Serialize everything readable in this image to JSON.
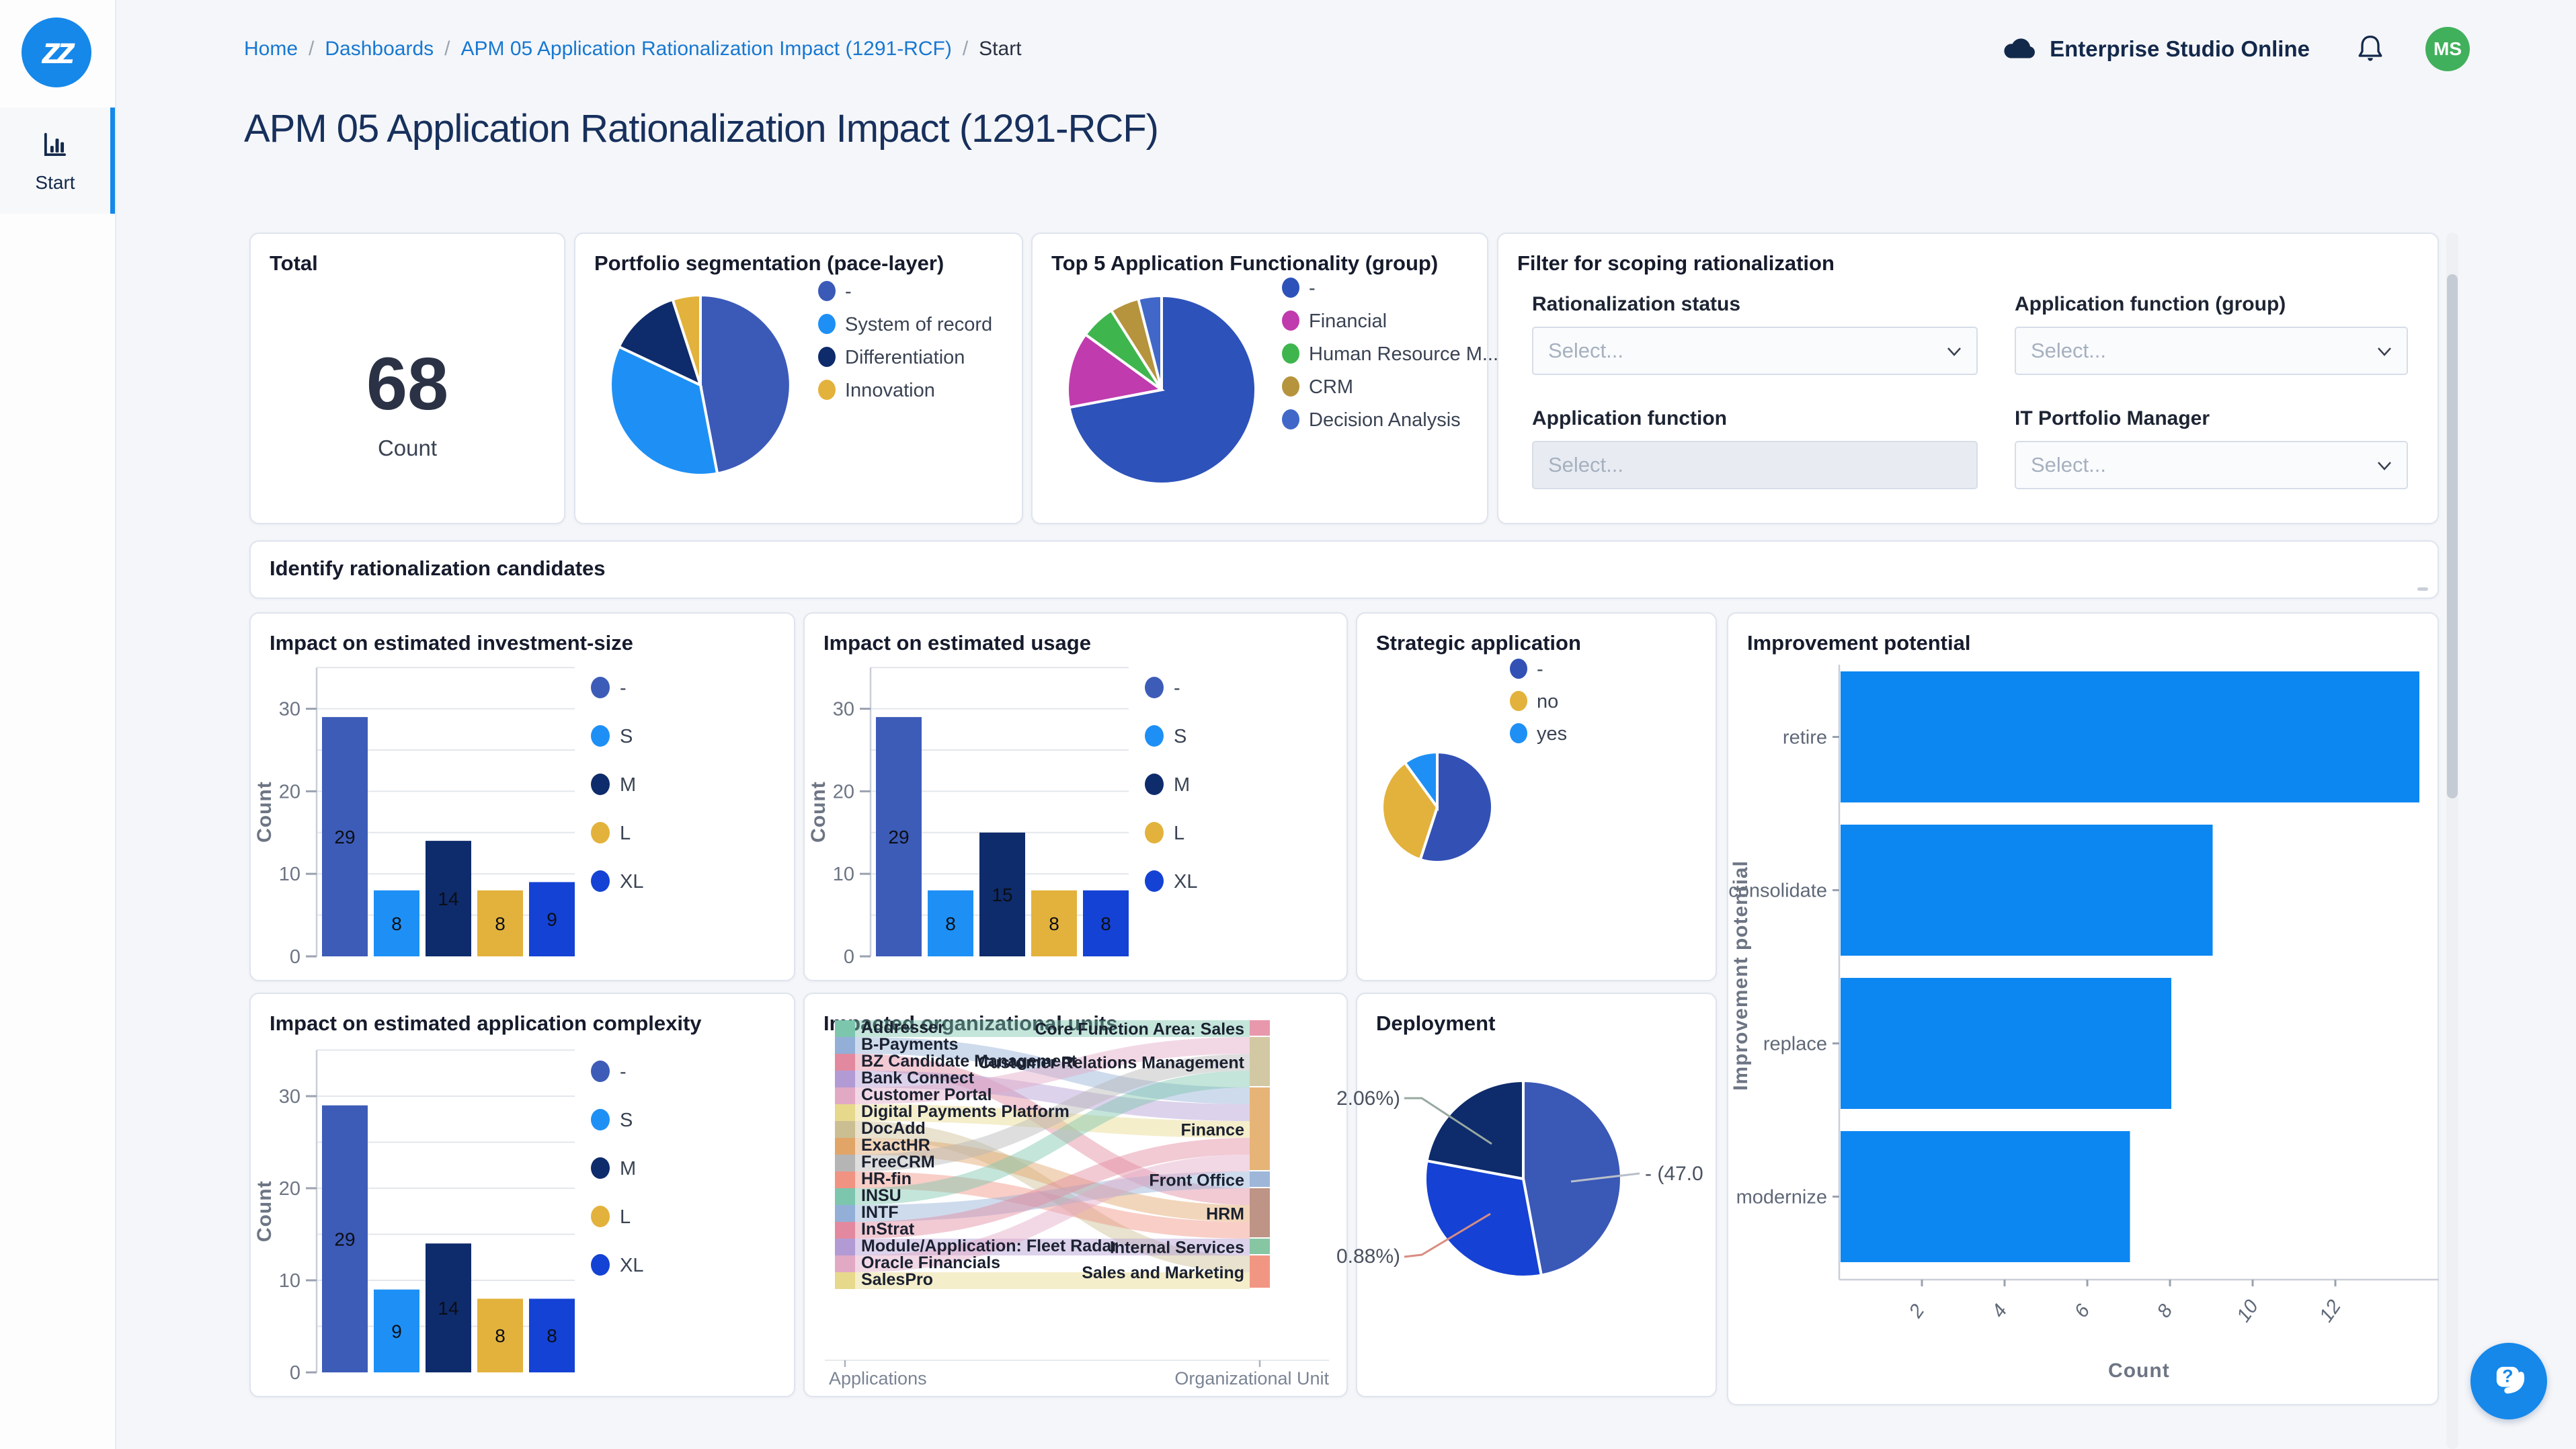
{
  "sidebar": {
    "logo_text": "zz",
    "nav": [
      {
        "label": "Start",
        "icon": "bar-chart-icon"
      }
    ]
  },
  "breadcrumb": {
    "separator": "/",
    "items": [
      {
        "label": "Home"
      },
      {
        "label": "Dashboards"
      },
      {
        "label": "APM 05 Application Rationalization Impact (1291-RCF)"
      },
      {
        "label": "Start"
      }
    ]
  },
  "topbar": {
    "product_name": "Enterprise Studio Online",
    "avatar_initials": "MS"
  },
  "page_title": "APM 05 Application Rationalization Impact (1291-RCF)",
  "total_card": {
    "title": "Total",
    "value": "68",
    "label": "Count"
  },
  "filter_card": {
    "title": "Filter for scoping rationalization",
    "fields": [
      {
        "label": "Rationalization status",
        "placeholder": "Select...",
        "disabled": false
      },
      {
        "label": "Application function (group)",
        "placeholder": "Select...",
        "disabled": false
      },
      {
        "label": "Application function",
        "placeholder": "Select...",
        "disabled": true
      },
      {
        "label": "IT Portfolio Manager",
        "placeholder": "Select...",
        "disabled": false
      }
    ]
  },
  "identify_card": {
    "title": "Identify rationalization candidates"
  },
  "chart_data": [
    {
      "id": "portfolio",
      "type": "pie",
      "title": "Portfolio segmentation (pace-layer)",
      "labels": [
        "-",
        "System of record",
        "Differentiation",
        "Innovation"
      ],
      "values": [
        47,
        35,
        13,
        5
      ],
      "colors": [
        "#3b5ab8",
        "#1e90f5",
        "#0e2b6b",
        "#e3b23c"
      ],
      "legend_position": "right"
    },
    {
      "id": "top5",
      "type": "pie",
      "title": "Top 5 Application Functionality (group)",
      "labels": [
        "-",
        "Financial",
        "Human Resource M...",
        "CRM",
        "Decision Analysis"
      ],
      "values": [
        72,
        13,
        6,
        5,
        4
      ],
      "colors": [
        "#2d52ba",
        "#c03bad",
        "#3fb54e",
        "#b6943d",
        "#4168c8"
      ],
      "legend_position": "right"
    },
    {
      "id": "investment",
      "type": "bar",
      "title": "Impact on estimated investment-size",
      "categories": [
        "-",
        "S",
        "M",
        "L",
        "XL"
      ],
      "values": [
        29,
        8,
        14,
        8,
        9
      ],
      "colors": [
        "#3d5cb8",
        "#1e90f5",
        "#0e2b6b",
        "#e3b23c",
        "#1442d4"
      ],
      "ylabel": "Count",
      "yticks": [
        0,
        10,
        20,
        30
      ],
      "ymax": 35,
      "grid_step": 5
    },
    {
      "id": "usage",
      "type": "bar",
      "title": "Impact on estimated usage",
      "categories": [
        "-",
        "S",
        "M",
        "L",
        "XL"
      ],
      "values": [
        29,
        8,
        15,
        8,
        8
      ],
      "colors": [
        "#3d5cb8",
        "#1e90f5",
        "#0e2b6b",
        "#e3b23c",
        "#1442d4"
      ],
      "ylabel": "Count",
      "yticks": [
        0,
        10,
        20,
        30
      ],
      "ymax": 35,
      "grid_step": 5
    },
    {
      "id": "strategic",
      "type": "pie",
      "title": "Strategic application",
      "labels": [
        "-",
        "no",
        "yes"
      ],
      "values": [
        55,
        35,
        10
      ],
      "colors": [
        "#3351b5",
        "#e3b23c",
        "#1e90f5"
      ],
      "legend_position": "right"
    },
    {
      "id": "improvement",
      "type": "hbar",
      "title": "Improvement potential",
      "categories": [
        "retire",
        "consolidate",
        "replace",
        "modernize"
      ],
      "values": [
        14,
        9,
        8,
        7
      ],
      "color": "#0c87f2",
      "xlabel": "Count",
      "ylabel": "Improvement potential",
      "xticks": [
        2,
        4,
        6,
        8,
        10,
        12
      ],
      "xmax": 14.5
    },
    {
      "id": "complexity",
      "type": "bar",
      "title": "Impact on estimated application complexity",
      "categories": [
        "-",
        "S",
        "M",
        "L",
        "XL"
      ],
      "values": [
        29,
        9,
        14,
        8,
        8
      ],
      "colors": [
        "#3d5cb8",
        "#1e90f5",
        "#0e2b6b",
        "#e3b23c",
        "#1442d4"
      ],
      "ylabel": "Count",
      "yticks": [
        0,
        10,
        20,
        30
      ],
      "ymax": 35,
      "grid_step": 5
    },
    {
      "id": "orgunits",
      "type": "sankey",
      "title": "Impacted organizational units",
      "left_axis_label": "Applications",
      "right_axis_label": "Organizational Unit",
      "left_nodes": [
        {
          "label": "Addresser",
          "color": "#7cc6ae"
        },
        {
          "label": "B-Payments",
          "color": "#93afd7"
        },
        {
          "label": "BZ Candidate Management",
          "color": "#e289a0"
        },
        {
          "label": "Bank Connect",
          "color": "#b29bd4"
        },
        {
          "label": "Customer Portal",
          "color": "#e2a9c5"
        },
        {
          "label": "Digital Payments Platform",
          "color": "#e7d98c"
        },
        {
          "label": "DocAdd",
          "color": "#cbbe93"
        },
        {
          "label": "ExactHR",
          "color": "#e2a568"
        },
        {
          "label": "FreeCRM",
          "color": "#b5b5b5"
        },
        {
          "label": "HR-fin",
          "color": "#f09383"
        },
        {
          "label": "INSU",
          "color": "#7cc6ae"
        },
        {
          "label": "INTF",
          "color": "#93afd7"
        },
        {
          "label": "InStrat",
          "color": "#e289a0"
        },
        {
          "label": "Module/Application: Fleet Radar",
          "color": "#b29bd4"
        },
        {
          "label": "Oracle Financials",
          "color": "#e2a9c5"
        },
        {
          "label": "SalesPro",
          "color": "#e7d98c"
        }
      ],
      "right_nodes": [
        {
          "label": "Core Function Area: Sales",
          "color": "#e898ac",
          "units": 1
        },
        {
          "label": "Customer Relations Management",
          "color": "#d2c9a4",
          "units": 3
        },
        {
          "label": "Finance",
          "color": "#e7b478",
          "units": 5
        },
        {
          "label": "Front Office",
          "color": "#9eb6d8",
          "units": 1
        },
        {
          "label": "HRM",
          "color": "#bd9486",
          "units": 3
        },
        {
          "label": "Internal Services",
          "color": "#86c6a2",
          "units": 1
        },
        {
          "label": "Sales and Marketing",
          "color": "#f29684",
          "units": 2
        }
      ],
      "links": [
        {
          "source": 0,
          "target": 0
        },
        {
          "source": 1,
          "target": 2
        },
        {
          "source": 2,
          "target": 4
        },
        {
          "source": 3,
          "target": 2
        },
        {
          "source": 4,
          "target": 1
        },
        {
          "source": 5,
          "target": 2
        },
        {
          "source": 6,
          "target": 6
        },
        {
          "source": 7,
          "target": 4
        },
        {
          "source": 8,
          "target": 1
        },
        {
          "source": 9,
          "target": 4
        },
        {
          "source": 10,
          "target": 1
        },
        {
          "source": 11,
          "target": 3
        },
        {
          "source": 12,
          "target": 2
        },
        {
          "source": 13,
          "target": 5
        },
        {
          "source": 14,
          "target": 2
        },
        {
          "source": 15,
          "target": 6
        }
      ]
    },
    {
      "id": "deployment",
      "type": "pie",
      "title": "Deployment",
      "labels": [
        "-",
        "",
        ""
      ],
      "values": [
        47.06,
        30.88,
        22.06
      ],
      "colors": [
        "#3a58b6",
        "#1542d4",
        "#0e2b6b"
      ],
      "callout_labels": [
        "- (47.0",
        "0.88%)",
        "2.06%)"
      ]
    }
  ]
}
